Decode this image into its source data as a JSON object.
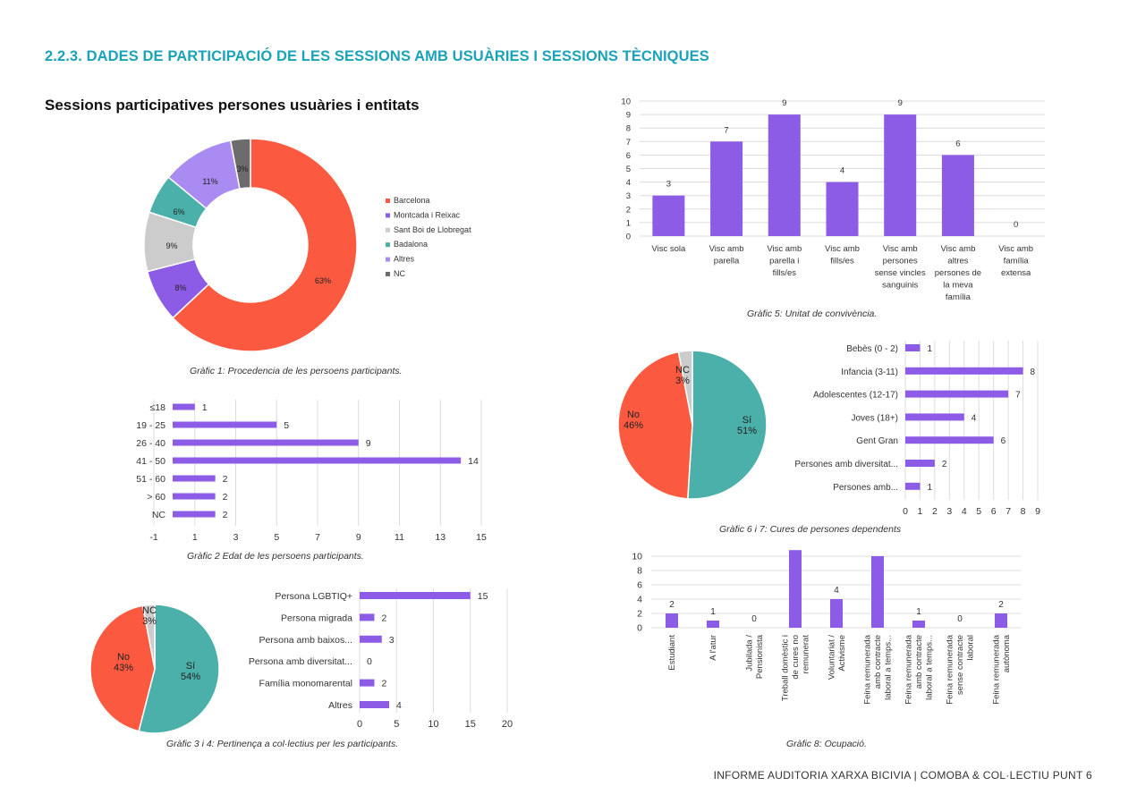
{
  "header": {
    "section_title": "2.2.3. DADES DE PARTICIPACIÓ DE LES SESSIONS AMB USUÀRIES I SESSIONS TÈCNIQUES",
    "subtitle": "Sessions participatives persones usuàries i entitats"
  },
  "captions": {
    "c1": "Gràfic 1: Procedencia de les persoens participants.",
    "c2": "Gràfic 2 Edat de les persoens participants.",
    "c34": "Gràfic 3 i 4: Pertinença a col·lectius per les participants.",
    "c5": "Gràfic 5: Unitat de convivència.",
    "c67": "Gràfic 6 i 7: Cures de persones dependents",
    "c8": "Gràfic 8: Ocupació."
  },
  "footer": "INFORME AUDITORIA XARXA BICIVIA | COMOBA & COL·LECTIU PUNT 6",
  "colors": {
    "accent": "#1aa3b8",
    "purple": "#8c5ce6",
    "red": "#fb5a41",
    "grey": "#cccccc",
    "teal": "#4bafaa",
    "lavender": "#a98bf2",
    "darkgrey": "#6c6c6c"
  },
  "chart_data": [
    {
      "id": "g1",
      "type": "pie",
      "donut": true,
      "slices": [
        {
          "label": "Barcelona",
          "value": 63,
          "text": "63%",
          "color": "#fb5a41"
        },
        {
          "label": "Montcada i Reixac",
          "value": 8,
          "text": "8%",
          "color": "#8c5ce6"
        },
        {
          "label": "Sant Boi de Llobregat",
          "value": 9,
          "text": "9%",
          "color": "#cccccc"
        },
        {
          "label": "Badalona",
          "value": 6,
          "text": "6%",
          "color": "#4bafaa"
        },
        {
          "label": "Altres",
          "value": 11,
          "text": "11%",
          "color": "#a98bf2"
        },
        {
          "label": "NC",
          "value": 3,
          "text": "3%",
          "color": "#6c6c6c"
        }
      ],
      "legend_position": "right"
    },
    {
      "id": "g2",
      "type": "bar",
      "orientation": "horizontal",
      "categories": [
        "≤18",
        "19 - 25",
        "26 - 40",
        "41 - 50",
        "51 - 60",
        "> 60",
        "NC"
      ],
      "values": [
        1,
        5,
        9,
        14,
        2,
        2,
        2
      ],
      "xticks": [
        "-1",
        "1",
        "3",
        "5",
        "7",
        "9",
        "11",
        "13",
        "15"
      ],
      "xlim": [
        -1,
        15
      ],
      "grid": true
    },
    {
      "id": "g3",
      "type": "pie",
      "slices": [
        {
          "label": "Sí",
          "value": 54,
          "text": "54%",
          "color": "#4bafaa"
        },
        {
          "label": "No",
          "value": 43,
          "text": "43%",
          "color": "#fb5a41"
        },
        {
          "label": "NC",
          "value": 3,
          "text": "3%",
          "color": "#cccccc"
        }
      ]
    },
    {
      "id": "g4",
      "type": "bar",
      "orientation": "horizontal",
      "categories": [
        "Persona LGBTIQ+",
        "Persona migrada",
        "Persona amb baixos...",
        "Persona amb diversitat...",
        "Família monomarental",
        "Altres"
      ],
      "values": [
        15,
        2,
        3,
        0,
        2,
        4
      ],
      "xticks": [
        "0",
        "5",
        "10",
        "15",
        "20"
      ],
      "xlim": [
        0,
        20
      ],
      "grid": true
    },
    {
      "id": "g5",
      "type": "bar",
      "orientation": "vertical",
      "categories": [
        [
          "Visc sola"
        ],
        [
          "Visc amb",
          "parella"
        ],
        [
          "Visc amb",
          "parella i",
          "fills/es"
        ],
        [
          "Visc amb",
          "fills/es"
        ],
        [
          "Visc amb",
          "persones",
          "sense vincles",
          "sanguinis"
        ],
        [
          "Visc amb",
          "altres",
          "persones de",
          "la meva",
          "família"
        ],
        [
          "Visc amb",
          "família",
          "extensa"
        ]
      ],
      "values": [
        3,
        7,
        9,
        4,
        9,
        6,
        0
      ],
      "yticks": [
        "0",
        "1",
        "2",
        "3",
        "4",
        "5",
        "6",
        "7",
        "8",
        "9",
        "10"
      ],
      "ylim": [
        0,
        10
      ],
      "grid": true
    },
    {
      "id": "g6",
      "type": "pie",
      "slices": [
        {
          "label": "Sí",
          "value": 51,
          "text": "51%",
          "color": "#4bafaa"
        },
        {
          "label": "No",
          "value": 46,
          "text": "46%",
          "color": "#fb5a41"
        },
        {
          "label": "NC",
          "value": 3,
          "text": "3%",
          "color": "#cccccc"
        }
      ]
    },
    {
      "id": "g7",
      "type": "bar",
      "orientation": "horizontal",
      "categories": [
        "Bebès (0 - 2)",
        "Infancia (3-11)",
        "Adolescentes (12-17)",
        "Joves (18+)",
        "Gent Gran",
        "Persones amb diversitat...",
        "Persones amb..."
      ],
      "values": [
        1,
        8,
        7,
        4,
        6,
        2,
        1
      ],
      "xticks": [
        "0",
        "1",
        "2",
        "3",
        "4",
        "5",
        "6",
        "7",
        "8",
        "9"
      ],
      "xlim": [
        0,
        9
      ],
      "grid": true
    },
    {
      "id": "g8",
      "type": "bar",
      "orientation": "vertical",
      "categories": [
        [
          "Estudiant"
        ],
        [
          "A l'atur"
        ],
        [
          "Jubilada /",
          "Pensionista"
        ],
        [
          "Treball domèstic i",
          "de cures no",
          "remunerat"
        ],
        [
          "Voluntariat /",
          "Activisme"
        ],
        [
          "Feina remunerada",
          "amb contracte",
          "laboral a temps..."
        ],
        [
          "Feina remunerada",
          "amb contracte",
          "laboral a temps..."
        ],
        [
          "Feina remunerada",
          "sense contracte",
          "laboral"
        ],
        [
          "Feina remunerada",
          "autònoma"
        ]
      ],
      "values": [
        2,
        1,
        0,
        11,
        4,
        10,
        1,
        0,
        2
      ],
      "labels": [
        "2",
        "1",
        "0",
        "",
        "4",
        "",
        "1",
        "0",
        "2"
      ],
      "yticks": [
        "0",
        "2",
        "4",
        "6",
        "8",
        "10"
      ],
      "ylim": [
        0,
        10
      ],
      "grid": true
    }
  ]
}
